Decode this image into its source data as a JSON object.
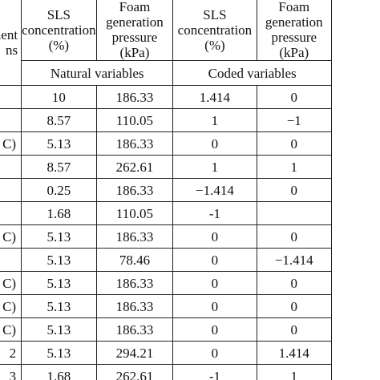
{
  "table": {
    "header": {
      "row_label": [
        "ment",
        "ns"
      ],
      "columns": [
        "SLS concentration (%)",
        "Foam generation pressure (kPa)",
        "SLS concentration (%)",
        "Foam generation pressure (kPa)"
      ],
      "groups": [
        "Natural variables",
        "Coded variables"
      ]
    },
    "rows": [
      [
        null,
        "10",
        "186.33",
        "1.414",
        "0"
      ],
      [
        null,
        "8.57",
        "110.05",
        "1",
        "−1"
      ],
      [
        "C)",
        "5.13",
        "186.33",
        "0",
        "0"
      ],
      [
        null,
        "8.57",
        "262.61",
        "1",
        "1"
      ],
      [
        null,
        "0.25",
        "186.33",
        "−1.414",
        "0"
      ],
      [
        null,
        "1.68",
        "110.05",
        "-1",
        null
      ],
      [
        "C)",
        "5.13",
        "186.33",
        "0",
        "0"
      ],
      [
        null,
        "5.13",
        "78.46",
        "0",
        "−1.414"
      ],
      [
        "C)",
        "5.13",
        "186.33",
        "0",
        "0"
      ],
      [
        "C)",
        "5.13",
        "186.33",
        "0",
        "0"
      ],
      [
        "C)",
        "5.13",
        "186.33",
        "0",
        "0"
      ],
      [
        "2",
        "5.13",
        "294.21",
        "0",
        "1.414"
      ],
      [
        "3",
        "1.68",
        "262.61",
        "-1",
        "1"
      ]
    ]
  }
}
